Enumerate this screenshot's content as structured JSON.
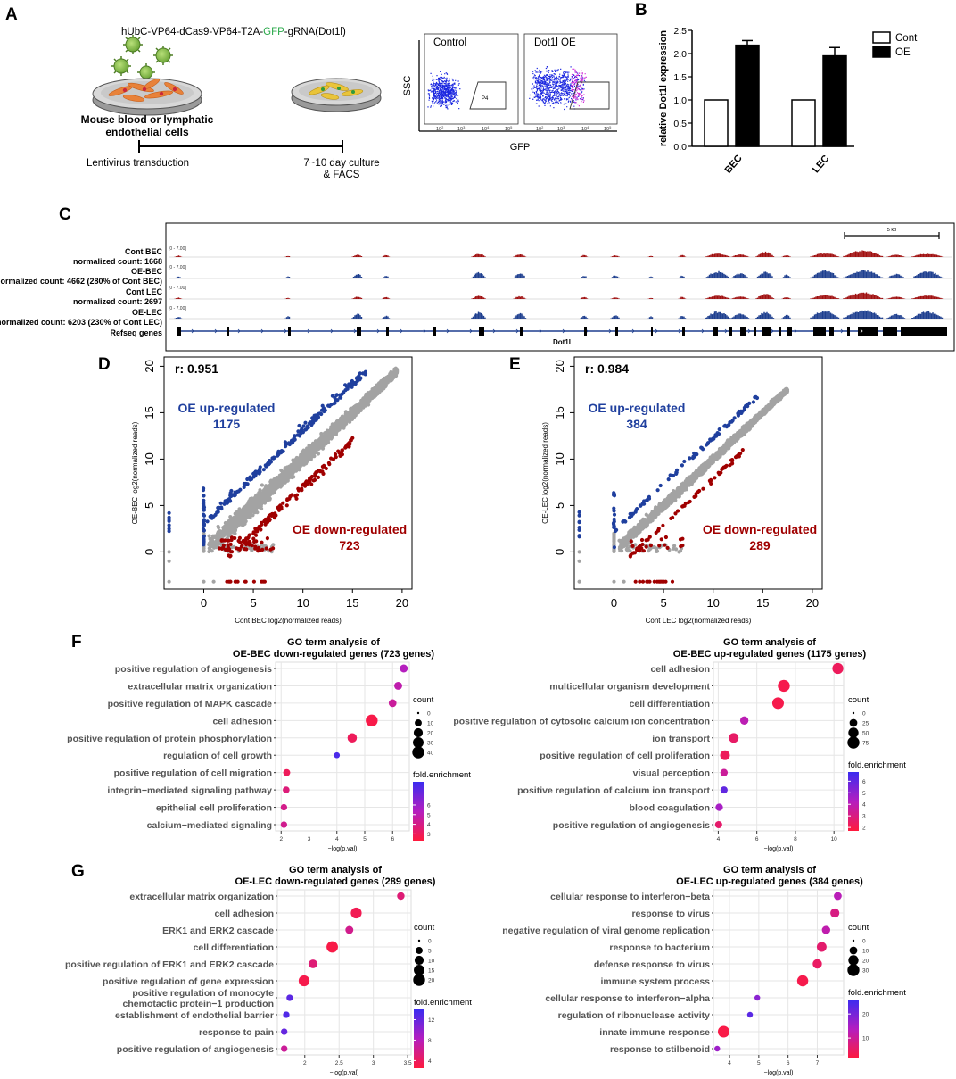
{
  "colors": {
    "blue": "#1f3f9e",
    "red": "#a00000",
    "grey": "#a3a3a3",
    "dot_hi": "#ff1a3c",
    "dot_lo": "#3b2cf0",
    "track_blue": "#1e3f8f",
    "track_red": "#a01010",
    "green": "#2aa84a"
  },
  "panelA": {
    "letter": "A",
    "construct_pre": "hUbC-VP64-dCas9-VP64-T2A-",
    "construct_gfp": "GFP",
    "construct_post": "-gRNA(Dot1l)",
    "cells_line1": "Mouse blood or lymphatic",
    "cells_line2": "endothelial cells",
    "step1": "Lentivirus transduction",
    "step2_line1": "7~10 day culture",
    "step2_line2": "& FACS",
    "facs": {
      "ylabel": "SSC",
      "xlabel": "GFP",
      "control_title": "Control",
      "oe_title": "Dot1l OE",
      "gate": "P4",
      "ticks": [
        "10",
        "10",
        "10",
        "10"
      ],
      "tick_exps": [
        "2",
        "3",
        "4",
        "5"
      ]
    }
  },
  "panelB": {
    "letter": "B",
    "ylabel": "relative Dot1l expression",
    "yticks": [
      "0.0",
      "0.5",
      "1.0",
      "1.5",
      "2.0",
      "2.5"
    ],
    "legend": [
      "Cont",
      "OE"
    ]
  },
  "chart_data": [
    {
      "type": "bar",
      "title": "",
      "ylabel": "relative Dot1l expression",
      "categories": [
        "BEC",
        "LEC"
      ],
      "series": [
        {
          "name": "Cont",
          "values": [
            1.0,
            1.0
          ],
          "errors": [
            0,
            0
          ]
        },
        {
          "name": "OE",
          "values": [
            2.18,
            1.95
          ],
          "errors": [
            0.1,
            0.18
          ]
        }
      ],
      "ylim": [
        0,
        2.5
      ]
    },
    {
      "type": "scatter",
      "title": "",
      "xlabel": "Cont BEC log2(normalized reads)",
      "ylabel": "OE-BEC log2(normalized reads)",
      "xlim": [
        -4,
        21
      ],
      "ylim": [
        -4,
        21
      ],
      "xticks": [
        "0",
        "5",
        "10",
        "15",
        "20"
      ],
      "yticks": [
        "0",
        "5",
        "10",
        "15",
        "20"
      ],
      "r": "r: 0.951",
      "up_label": "OE up-regulated",
      "up_count": "1175",
      "down_label": "OE down-regulated",
      "down_count": "723"
    },
    {
      "type": "scatter",
      "title": "",
      "xlabel": "Cont LEC log2(normalized reads)",
      "ylabel": "OE-LEC log2(normalized reads)",
      "xlim": [
        -4,
        21
      ],
      "ylim": [
        -4,
        21
      ],
      "xticks": [
        "0",
        "5",
        "10",
        "15",
        "20"
      ],
      "yticks": [
        "0",
        "5",
        "10",
        "15",
        "20"
      ],
      "r": "r: 0.984",
      "up_label": "OE up-regulated",
      "up_count": "384",
      "down_label": "OE down-regulated",
      "down_count": "289"
    },
    {
      "type": "scatter",
      "subtype": "dotplot",
      "title_line1": "GO term analysis of",
      "title_line2": "OE-BEC down-regulated genes (723 genes)",
      "xlabel": "−log(p.val)",
      "xlim": [
        1.8,
        6.6
      ],
      "xticks": [
        2,
        3,
        4,
        5,
        6
      ],
      "terms": [
        "positive regulation of angiogenesis",
        "extracellular matrix organization",
        "positive regulation of MAPK cascade",
        "cell adhesion",
        "positive regulation of protein phosphorylation",
        "regulation of cell growth",
        "positive regulation of cell migration",
        "integrin−mediated signaling pathway",
        "epithelial cell proliferation",
        "calcium−mediated signaling"
      ],
      "x": [
        6.4,
        6.2,
        6.0,
        5.25,
        4.55,
        4.0,
        2.2,
        2.18,
        2.1,
        2.1
      ],
      "count": [
        14,
        14,
        13,
        40,
        22,
        6,
        10,
        9,
        8,
        8
      ],
      "fold": [
        5.3,
        4.9,
        4.5,
        2.6,
        3.0,
        8.0,
        3.0,
        3.7,
        4.1,
        4.2
      ],
      "count_title": "count",
      "count_ticks": [
        0,
        10,
        20,
        30,
        40
      ],
      "fold_title": "fold.enrichment",
      "fold_ticks": [
        3,
        4,
        5,
        6
      ],
      "fold_range": [
        2.3,
        8.4
      ]
    },
    {
      "type": "scatter",
      "subtype": "dotplot",
      "title_line1": "GO term analysis of",
      "title_line2": "OE-BEC up-regulated genes (1175 genes)",
      "xlabel": "−log(p.val)",
      "xlim": [
        3.75,
        10.5
      ],
      "xticks": [
        4,
        6,
        8,
        10
      ],
      "terms": [
        "cell adhesion",
        "multicellular organism development",
        "cell differentiation",
        "positive regulation of cytosolic calcium ion concentration",
        "ion transport",
        "positive regulation of cell proliferation",
        "visual perception",
        "positive regulation of calcium ion transport",
        "blood coagulation",
        "positive regulation of angiogenesis"
      ],
      "x": [
        10.2,
        7.4,
        7.1,
        5.35,
        4.8,
        4.35,
        4.3,
        4.3,
        4.05,
        4.02
      ],
      "count": [
        60,
        75,
        70,
        30,
        45,
        45,
        22,
        20,
        22,
        20
      ],
      "fold": [
        2.3,
        2.0,
        2.0,
        4.0,
        2.5,
        2.3,
        3.5,
        6.0,
        4.5,
        2.6
      ],
      "count_title": "count",
      "count_ticks": [
        0,
        25,
        50,
        75
      ],
      "fold_title": "fold.enrichment",
      "fold_ticks": [
        2,
        3,
        4,
        5,
        6
      ],
      "fold_range": [
        1.7,
        6.8
      ]
    },
    {
      "type": "scatter",
      "subtype": "dotplot",
      "title_line1": "GO term analysis of",
      "title_line2": "OE-LEC down-regulated genes (289 genes)",
      "xlabel": "−log(p.val)",
      "xlim": [
        1.6,
        3.55
      ],
      "xticks": [
        2.0,
        2.5,
        3.0,
        3.5
      ],
      "terms": [
        "extracellular matrix organization",
        "cell adhesion",
        "ERK1 and ERK2 cascade",
        "cell differentiation",
        "positive regulation of ERK1 and ERK2 cascade",
        "positive regulation of gene expression",
        "positive regulation of monocyte\nchemotactic protein−1 production",
        "establishment of endothelial barrier",
        "response to pain",
        "positive regulation of angiogenesis"
      ],
      "x": [
        3.4,
        2.75,
        2.65,
        2.4,
        2.12,
        1.99,
        1.78,
        1.73,
        1.7,
        1.7
      ],
      "count": [
        6,
        16,
        7,
        18,
        9,
        16,
        4,
        4,
        4,
        4
      ],
      "fold": [
        5.0,
        3.5,
        6.0,
        3.0,
        5.0,
        3.2,
        12.5,
        13.0,
        12.0,
        6.5
      ],
      "count_title": "count",
      "count_ticks": [
        0,
        5,
        10,
        15,
        20
      ],
      "fold_title": "fold.enrichment",
      "fold_ticks": [
        4,
        8,
        12
      ],
      "fold_range": [
        2.5,
        14
      ]
    },
    {
      "type": "scatter",
      "subtype": "dotplot",
      "title_line1": "GO term analysis of",
      "title_line2": "OE-LEC up-regulated genes (384 genes)",
      "xlabel": "−log(p.val)",
      "xlim": [
        3.45,
        7.9
      ],
      "xticks": [
        4,
        5,
        6,
        7
      ],
      "terms": [
        "cellular response to interferon−beta",
        "response to virus",
        "negative regulation of viral genome replication",
        "response to bacterium",
        "defense response to virus",
        "immune system process",
        "cellular response to interferon−alpha",
        "regulation of ribonuclease activity",
        "innate immune response",
        "response to stilbenoid"
      ],
      "x": [
        7.7,
        7.6,
        7.3,
        7.15,
        7.0,
        6.5,
        4.95,
        4.7,
        3.8,
        3.58
      ],
      "count": [
        10,
        15,
        12,
        18,
        16,
        25,
        4,
        4,
        28,
        4
      ],
      "fold": [
        13,
        8,
        12,
        6,
        5,
        3,
        18,
        23,
        2.5,
        16
      ],
      "count_title": "count",
      "count_ticks": [
        0,
        10,
        20,
        30
      ],
      "fold_title": "fold.enrichment",
      "fold_ticks": [
        10,
        20
      ],
      "fold_range": [
        1.5,
        26
      ]
    }
  ],
  "panelC": {
    "letter": "C",
    "tracks": [
      {
        "name": "Cont BEC",
        "sub": "normalized count: 1668",
        "range": "[0 - 7.00]",
        "color": "red"
      },
      {
        "name": "OE-BEC",
        "sub": "normalized count: 4662 (280% of Cont BEC)",
        "range": "[0 - 7.00]",
        "color": "blue"
      },
      {
        "name": "Cont LEC",
        "sub": "normalized count: 2697",
        "range": "[0 - 7.00]",
        "color": "red"
      },
      {
        "name": "OE-LEC",
        "sub": "normalized count: 6203 (230% of Cont LEC)",
        "range": "[0 - 7.00]",
        "color": "blue"
      }
    ],
    "refseq": "Refseq genes",
    "gene": "Dot1l",
    "scale": "5 kb"
  },
  "letters": {
    "D": "D",
    "E": "E",
    "F": "F",
    "G": "G"
  }
}
